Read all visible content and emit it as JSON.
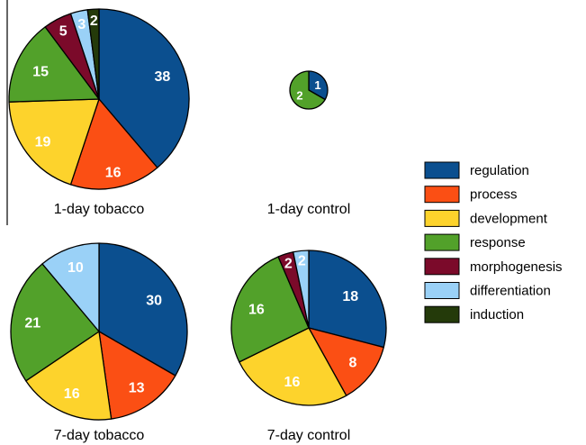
{
  "chart_data": [
    {
      "type": "pie",
      "title": "1-day tobacco",
      "categories": [
        "regulation",
        "process",
        "development",
        "response",
        "morphogenesis",
        "differentiation",
        "induction"
      ],
      "values": [
        38,
        16,
        19,
        15,
        5,
        3,
        2
      ]
    },
    {
      "type": "pie",
      "title": "1-day control",
      "categories": [
        "regulation",
        "response"
      ],
      "values": [
        1,
        2
      ]
    },
    {
      "type": "pie",
      "title": "7-day tobacco",
      "categories": [
        "regulation",
        "process",
        "development",
        "response",
        "differentiation"
      ],
      "values": [
        30,
        13,
        16,
        21,
        10
      ]
    },
    {
      "type": "pie",
      "title": "7-day control",
      "categories": [
        "regulation",
        "process",
        "development",
        "response",
        "morphogenesis",
        "differentiation"
      ],
      "values": [
        18,
        8,
        16,
        16,
        2,
        2
      ]
    }
  ],
  "legend": [
    {
      "label": "regulation",
      "color": "#0b4f8f"
    },
    {
      "label": "process",
      "color": "#fb4f14"
    },
    {
      "label": "development",
      "color": "#fdd32c"
    },
    {
      "label": "response",
      "color": "#52a12a"
    },
    {
      "label": "morphogenesis",
      "color": "#7b0a2a"
    },
    {
      "label": "differentiation",
      "color": "#9ad1f7"
    },
    {
      "label": "induction",
      "color": "#243a0a"
    }
  ]
}
